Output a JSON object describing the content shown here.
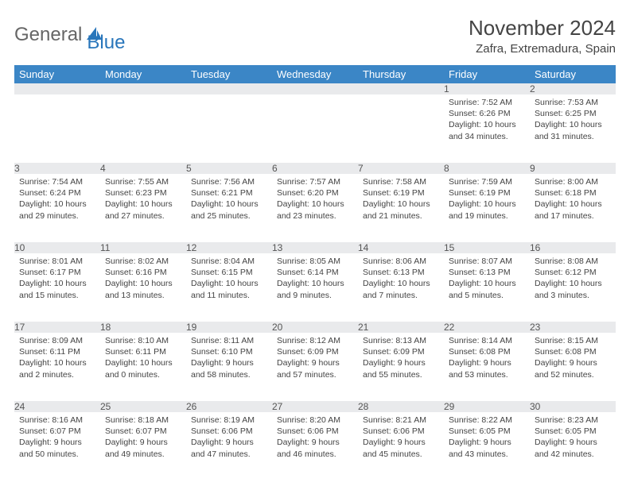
{
  "logo": {
    "text1": "General",
    "text2": "Blue"
  },
  "title": "November 2024",
  "location": "Zafra, Extremadura, Spain",
  "colors": {
    "header_bg": "#3b86c6",
    "daynum_bg": "#e9eaec",
    "rule": "#3b86c6",
    "text": "#444444",
    "logo_gray": "#666666",
    "logo_blue": "#2976bb",
    "background": "#ffffff"
  },
  "day_headers": [
    "Sunday",
    "Monday",
    "Tuesday",
    "Wednesday",
    "Thursday",
    "Friday",
    "Saturday"
  ],
  "weeks": [
    [
      null,
      null,
      null,
      null,
      null,
      {
        "n": "1",
        "sr": "7:52 AM",
        "ss": "6:26 PM",
        "dl": "10 hours and 34 minutes."
      },
      {
        "n": "2",
        "sr": "7:53 AM",
        "ss": "6:25 PM",
        "dl": "10 hours and 31 minutes."
      }
    ],
    [
      {
        "n": "3",
        "sr": "7:54 AM",
        "ss": "6:24 PM",
        "dl": "10 hours and 29 minutes."
      },
      {
        "n": "4",
        "sr": "7:55 AM",
        "ss": "6:23 PM",
        "dl": "10 hours and 27 minutes."
      },
      {
        "n": "5",
        "sr": "7:56 AM",
        "ss": "6:21 PM",
        "dl": "10 hours and 25 minutes."
      },
      {
        "n": "6",
        "sr": "7:57 AM",
        "ss": "6:20 PM",
        "dl": "10 hours and 23 minutes."
      },
      {
        "n": "7",
        "sr": "7:58 AM",
        "ss": "6:19 PM",
        "dl": "10 hours and 21 minutes."
      },
      {
        "n": "8",
        "sr": "7:59 AM",
        "ss": "6:19 PM",
        "dl": "10 hours and 19 minutes."
      },
      {
        "n": "9",
        "sr": "8:00 AM",
        "ss": "6:18 PM",
        "dl": "10 hours and 17 minutes."
      }
    ],
    [
      {
        "n": "10",
        "sr": "8:01 AM",
        "ss": "6:17 PM",
        "dl": "10 hours and 15 minutes."
      },
      {
        "n": "11",
        "sr": "8:02 AM",
        "ss": "6:16 PM",
        "dl": "10 hours and 13 minutes."
      },
      {
        "n": "12",
        "sr": "8:04 AM",
        "ss": "6:15 PM",
        "dl": "10 hours and 11 minutes."
      },
      {
        "n": "13",
        "sr": "8:05 AM",
        "ss": "6:14 PM",
        "dl": "10 hours and 9 minutes."
      },
      {
        "n": "14",
        "sr": "8:06 AM",
        "ss": "6:13 PM",
        "dl": "10 hours and 7 minutes."
      },
      {
        "n": "15",
        "sr": "8:07 AM",
        "ss": "6:13 PM",
        "dl": "10 hours and 5 minutes."
      },
      {
        "n": "16",
        "sr": "8:08 AM",
        "ss": "6:12 PM",
        "dl": "10 hours and 3 minutes."
      }
    ],
    [
      {
        "n": "17",
        "sr": "8:09 AM",
        "ss": "6:11 PM",
        "dl": "10 hours and 2 minutes."
      },
      {
        "n": "18",
        "sr": "8:10 AM",
        "ss": "6:11 PM",
        "dl": "10 hours and 0 minutes."
      },
      {
        "n": "19",
        "sr": "8:11 AM",
        "ss": "6:10 PM",
        "dl": "9 hours and 58 minutes."
      },
      {
        "n": "20",
        "sr": "8:12 AM",
        "ss": "6:09 PM",
        "dl": "9 hours and 57 minutes."
      },
      {
        "n": "21",
        "sr": "8:13 AM",
        "ss": "6:09 PM",
        "dl": "9 hours and 55 minutes."
      },
      {
        "n": "22",
        "sr": "8:14 AM",
        "ss": "6:08 PM",
        "dl": "9 hours and 53 minutes."
      },
      {
        "n": "23",
        "sr": "8:15 AM",
        "ss": "6:08 PM",
        "dl": "9 hours and 52 minutes."
      }
    ],
    [
      {
        "n": "24",
        "sr": "8:16 AM",
        "ss": "6:07 PM",
        "dl": "9 hours and 50 minutes."
      },
      {
        "n": "25",
        "sr": "8:18 AM",
        "ss": "6:07 PM",
        "dl": "9 hours and 49 minutes."
      },
      {
        "n": "26",
        "sr": "8:19 AM",
        "ss": "6:06 PM",
        "dl": "9 hours and 47 minutes."
      },
      {
        "n": "27",
        "sr": "8:20 AM",
        "ss": "6:06 PM",
        "dl": "9 hours and 46 minutes."
      },
      {
        "n": "28",
        "sr": "8:21 AM",
        "ss": "6:06 PM",
        "dl": "9 hours and 45 minutes."
      },
      {
        "n": "29",
        "sr": "8:22 AM",
        "ss": "6:05 PM",
        "dl": "9 hours and 43 minutes."
      },
      {
        "n": "30",
        "sr": "8:23 AM",
        "ss": "6:05 PM",
        "dl": "9 hours and 42 minutes."
      }
    ]
  ],
  "labels": {
    "sunrise": "Sunrise:",
    "sunset": "Sunset:",
    "daylight": "Daylight:"
  }
}
